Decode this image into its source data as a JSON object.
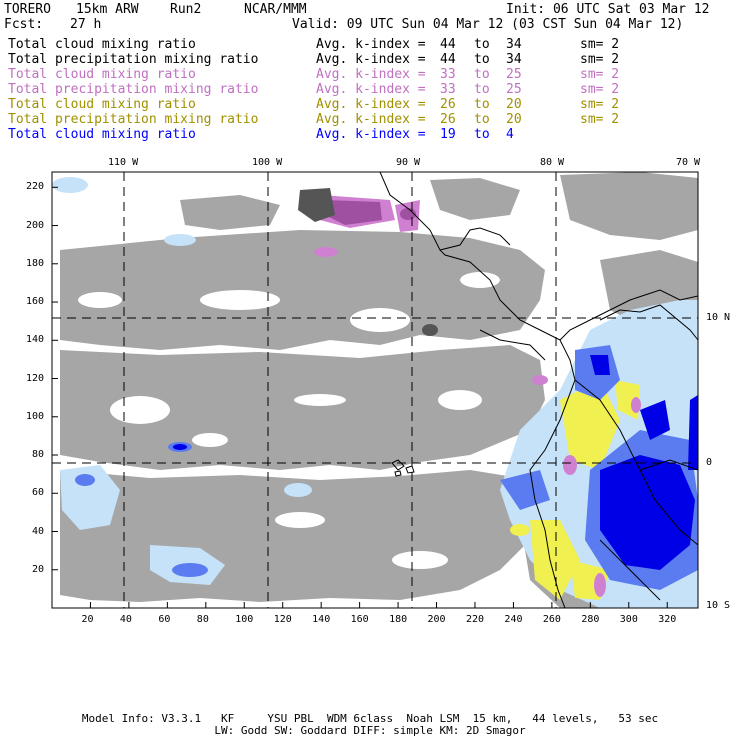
{
  "header": {
    "model": "TORERO",
    "resolution": "15km ARW",
    "run": "Run2",
    "org": "NCAR/MMM",
    "init": "Init: 06 UTC Sat 03 Mar 12",
    "fcst_label": "Fcst:",
    "fcst_value": "27 h",
    "valid": "Valid: 09 UTC Sun 04 Mar 12 (03 CST Sun 04 Mar 12)"
  },
  "legend": [
    {
      "field": "Total cloud mixing ratio",
      "idx": "Avg. k-index =",
      "from": "44",
      "to_word": "to",
      "to": "34",
      "sm": "sm= 2",
      "color": "#000000"
    },
    {
      "field": "Total precipitation mixing ratio",
      "idx": "Avg. k-index =",
      "from": "44",
      "to_word": "to",
      "to": "34",
      "sm": "sm= 2",
      "color": "#000000"
    },
    {
      "field": "Total cloud mixing ratio",
      "idx": "Avg. k-index =",
      "from": "33",
      "to_word": "to",
      "to": "25",
      "sm": "sm= 2",
      "color": "#c070c0"
    },
    {
      "field": "Total precipitation mixing ratio",
      "idx": "Avg. k-index =",
      "from": "33",
      "to_word": "to",
      "to": "25",
      "sm": "sm= 2",
      "color": "#c070c0"
    },
    {
      "field": "Total cloud mixing ratio",
      "idx": "Avg. k-index =",
      "from": "26",
      "to_word": "to",
      "to": "20",
      "sm": "sm= 2",
      "color": "#a09000"
    },
    {
      "field": "Total precipitation mixing ratio",
      "idx": "Avg. k-index =",
      "from": "26",
      "to_word": "to",
      "to": "20",
      "sm": "sm= 2",
      "color": "#a09000"
    },
    {
      "field": "Total cloud mixing ratio",
      "idx": "Avg. k-index =",
      "from": "19",
      "to_word": "to",
      "to": "4",
      "sm": "",
      "color": "#0000ff"
    }
  ],
  "axes": {
    "lon_labels": [
      "110 W",
      "100 W",
      "90 W",
      "80 W",
      "70 W"
    ],
    "lat_labels": [
      "10 N",
      "0",
      "10 S"
    ],
    "x_ticks": [
      "20",
      "40",
      "60",
      "80",
      "100",
      "120",
      "140",
      "160",
      "180",
      "200",
      "220",
      "240",
      "260",
      "280",
      "300",
      "320"
    ],
    "y_ticks": [
      "220",
      "200",
      "180",
      "160",
      "140",
      "120",
      "100",
      "80",
      "60",
      "40",
      "20"
    ]
  },
  "footer": {
    "line1": "Model Info: V3.3.1   KF     YSU PBL  WDM 6class  Noah LSM  15 km,   44 levels,   53 sec",
    "line2": "LW: Godd SW: Goddard DIFF: simple KM: 2D Smagor"
  },
  "colors": {
    "gray": "#a6a6a6",
    "light_blue": "#c6e2f8",
    "mid_blue": "#5a7cf0",
    "blue": "#0000e6",
    "yellow": "#f0f050",
    "purple": "#a050a0",
    "magenta": "#d080d0",
    "dark_gray": "#555555"
  }
}
